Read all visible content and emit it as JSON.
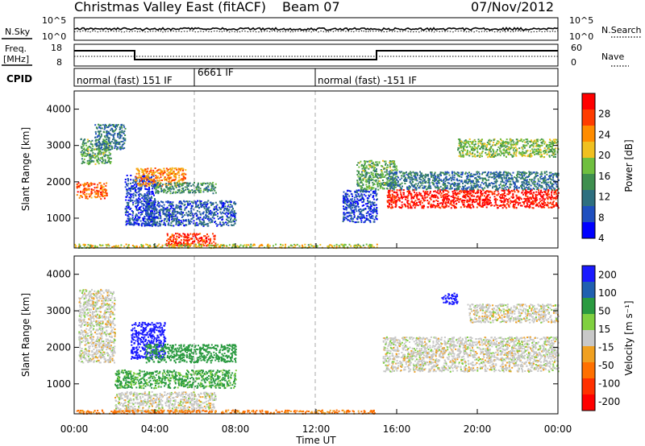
{
  "header": {
    "title": "Christmas Valley East (fitACF)",
    "beam": "Beam 07",
    "date": "07/Nov/2012"
  },
  "strips": {
    "nsky": {
      "label": "N.Sky",
      "ticks": [
        "10^5",
        "10^0"
      ],
      "right_label": "N.Search",
      "right_ticks": [
        "10^5",
        "10^0"
      ]
    },
    "freq": {
      "label_line1": "Freq.",
      "label_line2": "[MHz]",
      "ticks": [
        "18",
        "8"
      ],
      "right_label": "Nave",
      "right_ticks": [
        "60",
        "0"
      ]
    },
    "cpid": {
      "label": "CPID",
      "segments": [
        "normal (fast) 151 IF",
        "6661 IF",
        "normal (fast) -151 IF"
      ]
    }
  },
  "colors": {
    "power": [
      "#0000ff",
      "#1f4fbf",
      "#2e6f7f",
      "#3f8f4f",
      "#6fbf3f",
      "#f0c020",
      "#ff8c00",
      "#ff3c00",
      "#ff0000"
    ],
    "velocity": [
      "#1a1aff",
      "#2060b0",
      "#2a9a40",
      "#80d040",
      "#c8c8c8",
      "#f0a020",
      "#ff7000",
      "#ff3000",
      "#ff0000"
    ]
  },
  "power_colorbar": {
    "label": "Power [dB]",
    "ticks": [
      "28",
      "24",
      "20",
      "16",
      "12",
      "8",
      "4"
    ]
  },
  "velocity_colorbar": {
    "label": "Velocity [m s⁻¹]",
    "ticks": [
      "200",
      "100",
      "50",
      "15",
      "-15",
      "-50",
      "-100",
      "-200"
    ]
  },
  "chart_data": [
    {
      "type": "heatmap",
      "title": "Power",
      "ylabel": "Slant Range [km]",
      "xlabel": "Time UT",
      "x_ticks": [
        "00:00",
        "04:00",
        "08:00",
        "12:00",
        "16:00",
        "20:00",
        "00:00"
      ],
      "y_ticks": [
        "1000",
        "2000",
        "3000",
        "4000"
      ],
      "xlim_hours": [
        0,
        24
      ],
      "ylim_km": [
        180,
        4500
      ],
      "colorbar": "Power [dB]",
      "regions": [
        {
          "t0": 0.1,
          "t1": 1.6,
          "r0": 1550,
          "r1": 2000,
          "value_db": 24
        },
        {
          "t0": 0.3,
          "t1": 1.8,
          "r0": 2500,
          "r1": 3200,
          "value_db": 14
        },
        {
          "t0": 1.0,
          "t1": 2.5,
          "r0": 2900,
          "r1": 3600,
          "value_db": 10
        },
        {
          "t0": 2.5,
          "t1": 4.0,
          "r0": 800,
          "r1": 2200,
          "value_db": 6
        },
        {
          "t0": 3.0,
          "t1": 5.5,
          "r0": 1900,
          "r1": 2400,
          "value_db": 22
        },
        {
          "t0": 4.0,
          "t1": 7.0,
          "r0": 1700,
          "r1": 2000,
          "value_db": 12
        },
        {
          "t0": 3.5,
          "t1": 8.0,
          "r0": 800,
          "r1": 1500,
          "value_db": 8
        },
        {
          "t0": 4.5,
          "t1": 7.0,
          "r0": 250,
          "r1": 600,
          "value_db": 26
        },
        {
          "t0": 0.0,
          "t1": 15.0,
          "r0": 200,
          "r1": 300,
          "value_db": 18
        },
        {
          "t0": 13.3,
          "t1": 15.0,
          "r0": 900,
          "r1": 1800,
          "value_db": 6
        },
        {
          "t0": 14.0,
          "t1": 16.0,
          "r0": 1800,
          "r1": 2600,
          "value_db": 14
        },
        {
          "t0": 15.5,
          "t1": 24.0,
          "r0": 1300,
          "r1": 1800,
          "value_db": 28
        },
        {
          "t0": 15.5,
          "t1": 24.0,
          "r0": 1800,
          "r1": 2300,
          "value_db": 10
        },
        {
          "t0": 19.0,
          "t1": 24.0,
          "r0": 2700,
          "r1": 3200,
          "value_db": 16
        }
      ]
    },
    {
      "type": "heatmap",
      "title": "Velocity",
      "ylabel": "Slant Range [km]",
      "xlabel": "Time UT",
      "x_ticks": [
        "00:00",
        "04:00",
        "08:00",
        "12:00",
        "16:00",
        "20:00",
        "00:00"
      ],
      "y_ticks": [
        "1000",
        "2000",
        "3000",
        "4000"
      ],
      "xlim_hours": [
        0,
        24
      ],
      "ylim_km": [
        180,
        4500
      ],
      "colorbar": "Velocity [m s-1]",
      "regions": [
        {
          "t0": 0.2,
          "t1": 2.0,
          "r0": 1600,
          "r1": 3600,
          "value_ms": 0
        },
        {
          "t0": 2.8,
          "t1": 4.5,
          "r0": 1700,
          "r1": 2700,
          "value_ms": 200
        },
        {
          "t0": 3.5,
          "t1": 8.0,
          "r0": 1600,
          "r1": 2100,
          "value_ms": 50
        },
        {
          "t0": 2.0,
          "t1": 8.0,
          "r0": 900,
          "r1": 1400,
          "value_ms": 40
        },
        {
          "t0": 2.0,
          "t1": 7.0,
          "r0": 250,
          "r1": 800,
          "value_ms": 0
        },
        {
          "t0": 0.0,
          "t1": 15.0,
          "r0": 200,
          "r1": 300,
          "value_ms": -40
        },
        {
          "t0": 15.3,
          "t1": 24.0,
          "r0": 1350,
          "r1": 2300,
          "value_ms": 0
        },
        {
          "t0": 19.5,
          "t1": 24.0,
          "r0": 2700,
          "r1": 3200,
          "value_ms": 0
        },
        {
          "t0": 18.2,
          "t1": 19.0,
          "r0": 3200,
          "r1": 3500,
          "value_ms": 200
        }
      ]
    }
  ]
}
